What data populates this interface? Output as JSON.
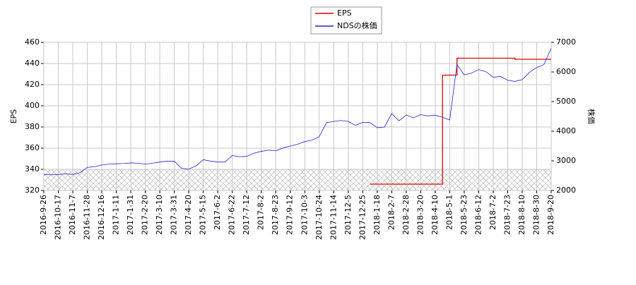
{
  "chart_data": {
    "type": "line",
    "categories": [
      "2016-9-26",
      null,
      "2016-10-17",
      null,
      "2016-11-7",
      null,
      "2016-11-28",
      null,
      "2016-12-16",
      null,
      "2017-1-11",
      null,
      "2017-1-31",
      null,
      "2017-2-20",
      null,
      "2017-3-10",
      null,
      "2017-3-31",
      null,
      "2017-4-20",
      null,
      "2017-5-15",
      null,
      "2017-6-2",
      null,
      "2017-6-22",
      null,
      "2017-7-12",
      null,
      "2017-8-2",
      null,
      "2017-8-23",
      null,
      "2017-9-12",
      null,
      "2017-10-3",
      null,
      "2017-10-24",
      null,
      "2017-11-14",
      null,
      "2017-12-5",
      null,
      "2017-12-25",
      null,
      "2018-1-18",
      null,
      "2018-2-7",
      null,
      "2018-2-28",
      null,
      "2018-3-20",
      null,
      "2018-4-10",
      null,
      "2018-5-1",
      null,
      "2018-5-23",
      null,
      "2018-6-12",
      null,
      "2018-7-2",
      null,
      "2018-7-23",
      null,
      "2018-8-10",
      null,
      "2018-8-30",
      null,
      "2018-9-20"
    ],
    "series": [
      {
        "name": "EPS",
        "color": "#dd0000",
        "axis": "y",
        "step": true,
        "values": [
          null,
          null,
          null,
          null,
          null,
          null,
          null,
          null,
          null,
          null,
          null,
          null,
          null,
          null,
          null,
          null,
          null,
          null,
          null,
          null,
          null,
          null,
          null,
          null,
          null,
          null,
          null,
          null,
          null,
          null,
          null,
          null,
          null,
          null,
          null,
          null,
          null,
          null,
          null,
          null,
          null,
          null,
          null,
          null,
          null,
          326,
          326,
          326,
          326,
          326,
          326,
          326,
          326,
          326,
          326,
          429,
          429,
          445,
          445,
          445,
          445,
          445,
          445,
          445,
          445,
          444,
          444,
          444,
          444,
          444,
          444
        ]
      },
      {
        "name": "NDSの株価",
        "color": "#2222cc",
        "axis": "y2",
        "values": [
          2540,
          2530,
          2540,
          2560,
          2540,
          2600,
          2780,
          2800,
          2860,
          2890,
          2900,
          2910,
          2930,
          2920,
          2890,
          2920,
          2960,
          2990,
          2990,
          2750,
          2720,
          2830,
          3040,
          2990,
          2960,
          2960,
          3180,
          3140,
          3150,
          3260,
          3320,
          3360,
          3340,
          3430,
          3500,
          3560,
          3650,
          3700,
          3820,
          4290,
          4330,
          4360,
          4330,
          4200,
          4300,
          4290,
          4120,
          4140,
          4600,
          4350,
          4550,
          4450,
          4560,
          4520,
          4540,
          4470,
          4380,
          6250,
          5900,
          5960,
          6080,
          6010,
          5820,
          5850,
          5720,
          5680,
          5740,
          5990,
          6150,
          6250,
          6800
        ]
      }
    ],
    "y_label": "EPS",
    "y2_label": "株価",
    "ylim": [
      320,
      460
    ],
    "yticks": [
      320,
      340,
      360,
      380,
      400,
      420,
      440,
      460
    ],
    "y2lim": [
      2000,
      7000
    ],
    "y2ticks": [
      2000,
      3000,
      4000,
      5000,
      6000,
      7000
    ],
    "grid": true,
    "legend": "top"
  }
}
